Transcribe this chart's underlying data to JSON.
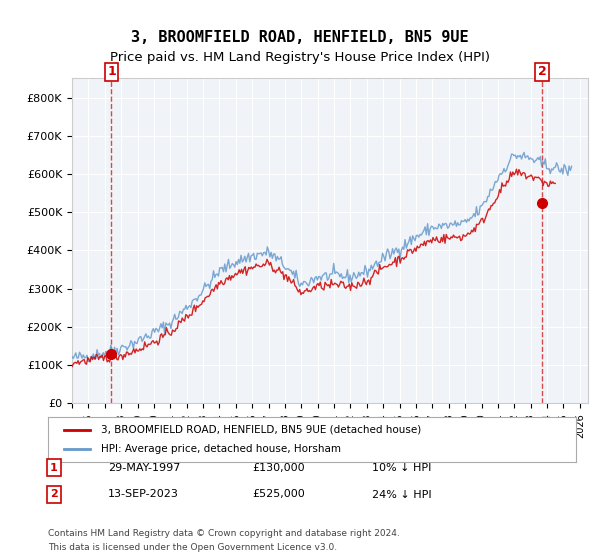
{
  "title": "3, BROOMFIELD ROAD, HENFIELD, BN5 9UE",
  "subtitle": "Price paid vs. HM Land Registry's House Price Index (HPI)",
  "ylabel": "",
  "ylim": [
    0,
    850000
  ],
  "yticks": [
    0,
    100000,
    200000,
    300000,
    400000,
    500000,
    600000,
    700000,
    800000
  ],
  "ytick_labels": [
    "£0",
    "£100K",
    "£200K",
    "£300K",
    "£400K",
    "£500K",
    "£600K",
    "£700K",
    "£800K"
  ],
  "xlim_start": 1995.0,
  "xlim_end": 2026.5,
  "sale1_x": 1997.41,
  "sale1_y": 130000,
  "sale1_label": "1",
  "sale1_date": "29-MAY-1997",
  "sale1_price": "£130,000",
  "sale1_hpi": "10% ↓ HPI",
  "sale2_x": 2023.71,
  "sale2_y": 525000,
  "sale2_label": "2",
  "sale2_date": "13-SEP-2023",
  "sale2_price": "£525,000",
  "sale2_hpi": "24% ↓ HPI",
  "line_color_property": "#cc0000",
  "line_color_hpi": "#6699cc",
  "marker_color": "#cc0000",
  "dashed_line_color": "#cc0000",
  "background_color": "#f0f4f8",
  "plot_bg_color": "#f0f4f8",
  "legend_entry1": "3, BROOMFIELD ROAD, HENFIELD, BN5 9UE (detached house)",
  "legend_entry2": "HPI: Average price, detached house, Horsham",
  "footer1": "Contains HM Land Registry data © Crown copyright and database right 2024.",
  "footer2": "This data is licensed under the Open Government Licence v3.0.",
  "title_fontsize": 11,
  "subtitle_fontsize": 9.5,
  "hpi_years": [
    1995,
    1996,
    1997,
    1998,
    1999,
    2000,
    2001,
    2002,
    2003,
    2004,
    2005,
    2006,
    2007,
    2008,
    2009,
    2010,
    2011,
    2012,
    2013,
    2014,
    2015,
    2016,
    2017,
    2018,
    2019,
    2020,
    2021,
    2022,
    2023,
    2024,
    2025
  ],
  "hpi_values": [
    118000,
    124000,
    132000,
    145000,
    162000,
    185000,
    210000,
    250000,
    295000,
    345000,
    370000,
    385000,
    395000,
    360000,
    310000,
    330000,
    335000,
    330000,
    345000,
    380000,
    405000,
    435000,
    460000,
    465000,
    470000,
    510000,
    590000,
    650000,
    640000,
    620000,
    610000
  ],
  "property_years": [
    1995,
    1996,
    1997,
    1998,
    1999,
    2000,
    2001,
    2002,
    2003,
    2004,
    2005,
    2006,
    2007,
    2008,
    2009,
    2010,
    2011,
    2012,
    2013,
    2014,
    2015,
    2016,
    2017,
    2018,
    2019,
    2020,
    2021,
    2022,
    2023,
    2024
  ],
  "property_values": [
    105000,
    112000,
    118000,
    125000,
    140000,
    160000,
    185000,
    225000,
    268000,
    315000,
    340000,
    355000,
    365000,
    335000,
    288000,
    305000,
    310000,
    305000,
    320000,
    355000,
    378000,
    405000,
    428000,
    432000,
    437000,
    473000,
    547000,
    603000,
    594000,
    575000
  ]
}
